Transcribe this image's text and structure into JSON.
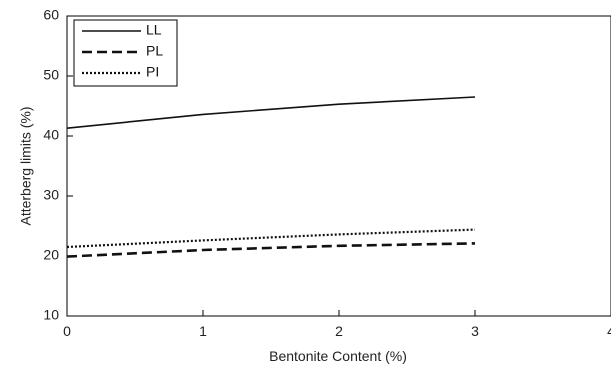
{
  "chart_data": {
    "type": "line",
    "xlabel": "Bentonite Content (%)",
    "ylabel": "Atterberg limits (%)",
    "xlim": [
      0,
      4
    ],
    "ylim": [
      10,
      60
    ],
    "xticks": [
      0,
      1,
      2,
      3,
      4
    ],
    "yticks": [
      10,
      20,
      30,
      40,
      50,
      60
    ],
    "grid": false,
    "legend_position": "top-left",
    "series": [
      {
        "name": "LL",
        "style": "solid",
        "color": "#111111",
        "x": [
          0,
          1,
          2,
          3
        ],
        "y": [
          41.3,
          43.6,
          45.3,
          46.5
        ]
      },
      {
        "name": "PL",
        "style": "dashed",
        "color": "#111111",
        "x": [
          0,
          1,
          2,
          3
        ],
        "y": [
          19.9,
          21.0,
          21.7,
          22.1
        ]
      },
      {
        "name": "PI",
        "style": "dotted",
        "color": "#111111",
        "x": [
          0,
          1,
          2,
          3
        ],
        "y": [
          21.5,
          22.6,
          23.6,
          24.4
        ]
      }
    ]
  }
}
